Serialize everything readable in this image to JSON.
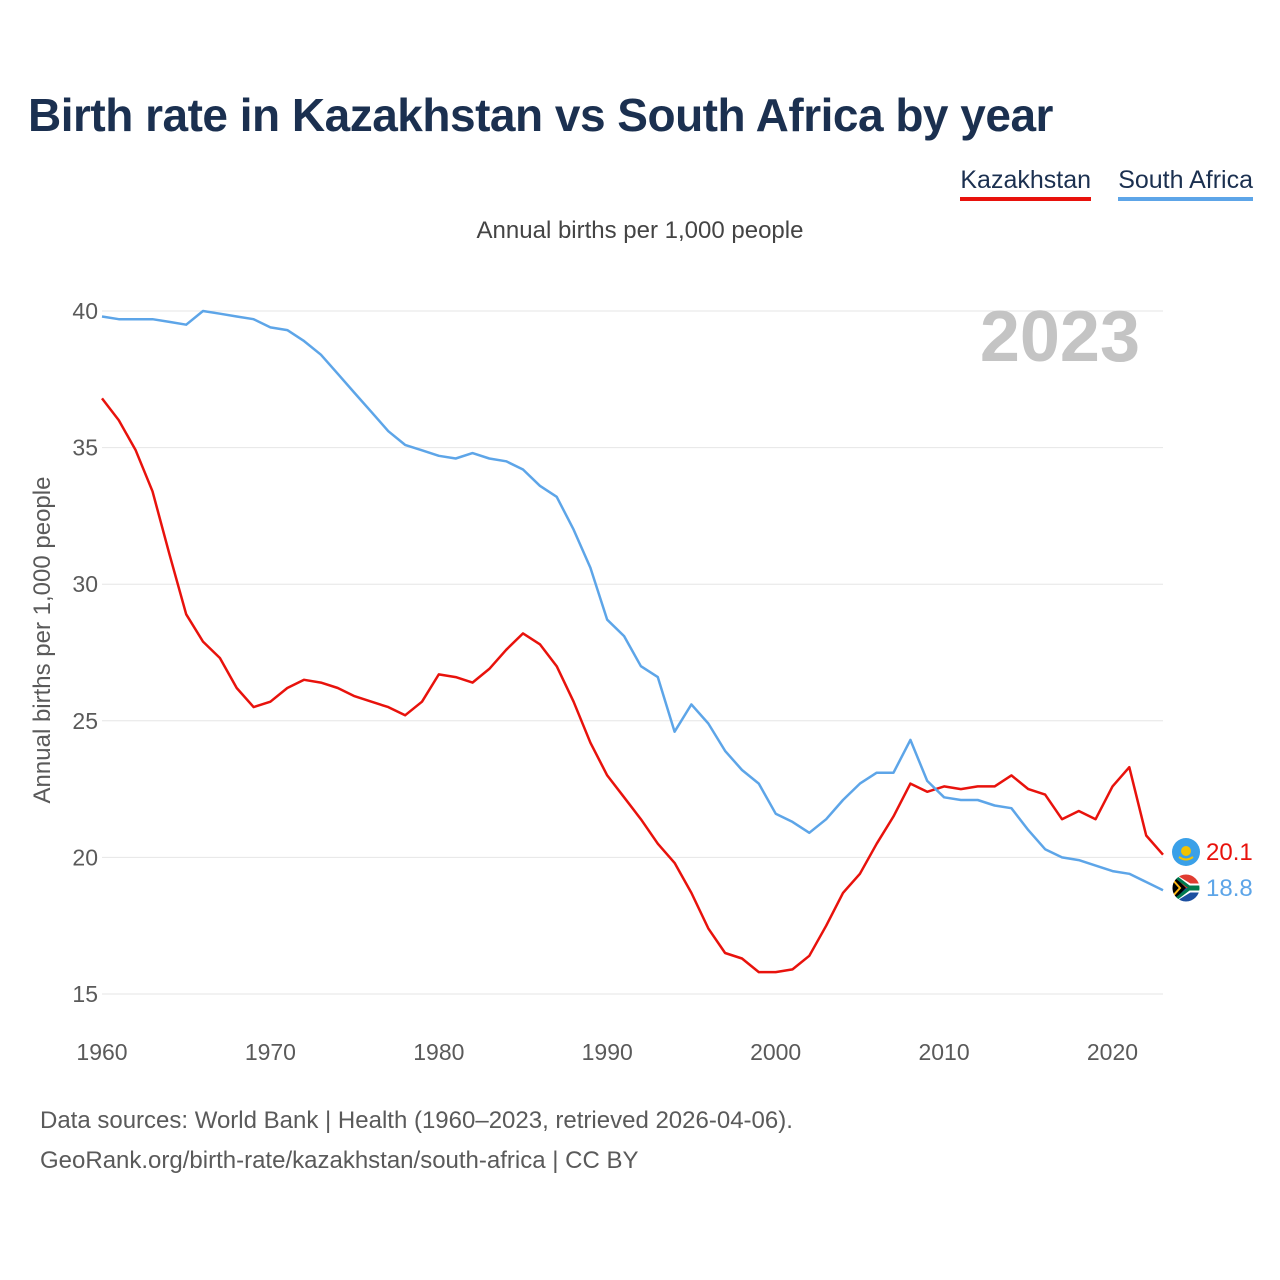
{
  "title": "Birth rate in Kazakhstan vs South Africa by year",
  "subtitle": "Annual births per 1,000 people",
  "legend": {
    "kazakhstan": "Kazakhstan",
    "south_africa": "South Africa"
  },
  "year_label": "2023",
  "sources": {
    "line1": "Data sources: World Bank | Health (1960–2023, retrieved 2026-04-06).",
    "line2": "GeoRank.org/birth-rate/kazakhstan/south-africa | CC BY"
  },
  "end_labels": {
    "kazakhstan": "20.1",
    "south_africa": "18.8"
  },
  "colors": {
    "kazakhstan": "#e8120c",
    "south_africa": "#5da5e8",
    "title": "#1b3050",
    "grid": "#e6e6e6",
    "year_watermark": "#c4c4c4"
  },
  "chart_data": {
    "type": "line",
    "title": "Birth rate in Kazakhstan vs South Africa by year",
    "subtitle": "Annual births per 1,000 people",
    "xlabel": "",
    "ylabel": "Annual births per 1,000 people",
    "xlim": [
      1960,
      2023
    ],
    "ylim": [
      15,
      40
    ],
    "xticks": [
      1960,
      1970,
      1980,
      1990,
      2000,
      2010,
      2020
    ],
    "yticks": [
      15,
      20,
      25,
      30,
      35,
      40
    ],
    "grid": true,
    "legend_position": "top-right",
    "x_start": 1960,
    "series": [
      {
        "name": "Kazakhstan",
        "color": "#e8120c",
        "values": [
          36.8,
          36.0,
          34.9,
          33.4,
          31.1,
          28.9,
          27.9,
          27.3,
          26.2,
          25.5,
          25.7,
          26.2,
          26.5,
          26.4,
          26.2,
          25.9,
          25.7,
          25.5,
          25.2,
          25.7,
          26.7,
          26.6,
          26.4,
          26.9,
          27.6,
          28.2,
          27.8,
          27.0,
          25.7,
          24.2,
          23.0,
          22.2,
          21.4,
          20.5,
          19.8,
          18.7,
          17.4,
          16.5,
          16.3,
          15.8,
          15.8,
          15.9,
          16.4,
          17.5,
          18.7,
          19.4,
          20.5,
          21.5,
          22.7,
          22.4,
          22.6,
          22.5,
          22.6,
          22.6,
          23.0,
          22.5,
          22.3,
          21.4,
          21.7,
          21.4,
          22.6,
          23.3,
          20.8,
          20.1
        ]
      },
      {
        "name": "South Africa",
        "color": "#5da5e8",
        "values": [
          39.8,
          39.7,
          39.7,
          39.7,
          39.6,
          39.5,
          40.0,
          39.9,
          39.8,
          39.7,
          39.4,
          39.3,
          38.9,
          38.4,
          37.7,
          37.0,
          36.3,
          35.6,
          35.1,
          34.9,
          34.7,
          34.6,
          34.8,
          34.6,
          34.5,
          34.2,
          33.6,
          33.2,
          32.0,
          30.6,
          28.7,
          28.1,
          27.0,
          26.6,
          24.6,
          25.6,
          24.9,
          23.9,
          23.2,
          22.7,
          21.6,
          21.3,
          20.9,
          21.4,
          22.1,
          22.7,
          23.1,
          23.1,
          24.3,
          22.8,
          22.2,
          22.1,
          22.1,
          21.9,
          21.8,
          21.0,
          20.3,
          20.0,
          19.9,
          19.7,
          19.5,
          19.4,
          19.1,
          18.8
        ]
      }
    ]
  }
}
